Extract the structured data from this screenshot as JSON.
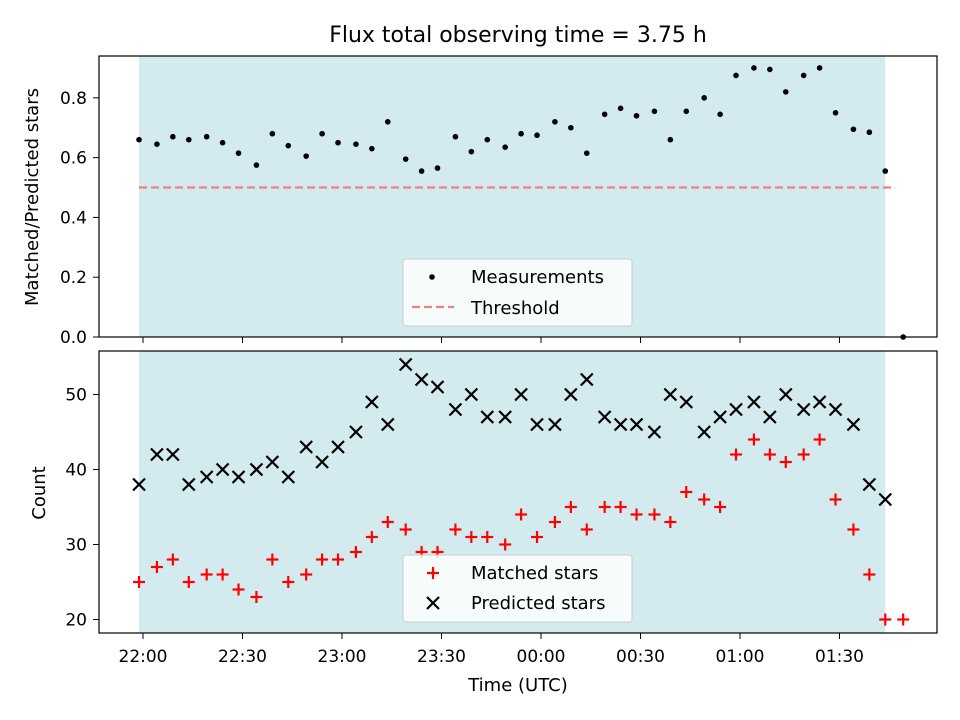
{
  "chart_data": [
    {
      "type": "scatter",
      "title": "Flux total observing time = 3.75 h",
      "ylabel": "Matched/Predicted stars",
      "xlabel": "",
      "ylim": [
        0,
        0.94
      ],
      "yticks": [
        0.0,
        0.2,
        0.4,
        0.6,
        0.8
      ],
      "ytick_labels": [
        "0.0",
        "0.2",
        "0.4",
        "0.6",
        "0.8"
      ],
      "grid": false,
      "legend_position": "bottom-center",
      "shaded_span_color": "#d3eaee",
      "shaded_span_hours": [
        -0.02,
        3.73
      ],
      "series": [
        {
          "name": "Measurements",
          "marker": "dot",
          "color": "#000000",
          "x_hours": [
            -0.02,
            0.07,
            0.15,
            0.23,
            0.32,
            0.4,
            0.48,
            0.57,
            0.65,
            0.73,
            0.82,
            0.9,
            0.98,
            1.07,
            1.15,
            1.23,
            1.32,
            1.4,
            1.48,
            1.57,
            1.65,
            1.73,
            1.82,
            1.9,
            1.98,
            2.07,
            2.15,
            2.23,
            2.32,
            2.4,
            2.48,
            2.57,
            2.65,
            2.73,
            2.82,
            2.9,
            2.98,
            3.07,
            3.15,
            3.23,
            3.32,
            3.4,
            3.48,
            3.57,
            3.65,
            3.73,
            3.82
          ],
          "values": [
            0.66,
            0.645,
            0.67,
            0.66,
            0.67,
            0.65,
            0.615,
            0.575,
            0.68,
            0.64,
            0.605,
            0.68,
            0.65,
            0.645,
            0.63,
            0.72,
            0.595,
            0.555,
            0.565,
            0.67,
            0.62,
            0.66,
            0.635,
            0.68,
            0.675,
            0.72,
            0.7,
            0.615,
            0.745,
            0.765,
            0.74,
            0.755,
            0.66,
            0.755,
            0.8,
            0.745,
            0.875,
            0.9,
            0.895,
            0.82,
            0.875,
            0.9,
            0.75,
            0.695,
            0.685,
            0.555,
            0.0
          ]
        },
        {
          "name": "Threshold",
          "marker": "dashed-line",
          "color": "#f08080",
          "x_hours": [
            -0.02,
            3.78
          ],
          "values": [
            0.5,
            0.5
          ]
        }
      ]
    },
    {
      "type": "scatter",
      "xlabel": "Time (UTC)",
      "ylabel": "Count",
      "ylim": [
        18.2,
        55.8
      ],
      "yticks": [
        20,
        30,
        40,
        50
      ],
      "ytick_labels": [
        "20",
        "30",
        "40",
        "50"
      ],
      "xticks_hours": [
        0,
        0.5,
        1,
        1.5,
        2,
        2.5,
        3,
        3.5
      ],
      "xtick_labels": [
        "22:00",
        "22:30",
        "23:00",
        "23:30",
        "00:00",
        "00:30",
        "01:00",
        "01:30"
      ],
      "grid": false,
      "legend_position": "bottom-center",
      "series": [
        {
          "name": "Matched stars",
          "marker": "plus",
          "color": "#ff0000",
          "x_hours": [
            -0.02,
            0.07,
            0.15,
            0.23,
            0.32,
            0.4,
            0.48,
            0.57,
            0.65,
            0.73,
            0.82,
            0.9,
            0.98,
            1.07,
            1.15,
            1.23,
            1.32,
            1.4,
            1.48,
            1.57,
            1.65,
            1.73,
            1.82,
            1.9,
            1.98,
            2.07,
            2.15,
            2.23,
            2.32,
            2.4,
            2.48,
            2.57,
            2.65,
            2.73,
            2.82,
            2.9,
            2.98,
            3.07,
            3.15,
            3.23,
            3.32,
            3.4,
            3.48,
            3.57,
            3.65,
            3.73,
            3.82
          ],
          "values": [
            25,
            27,
            28,
            25,
            26,
            26,
            24,
            23,
            28,
            25,
            26,
            28,
            28,
            29,
            31,
            33,
            32,
            29,
            29,
            32,
            31,
            31,
            30,
            34,
            31,
            33,
            35,
            32,
            35,
            35,
            34,
            34,
            33,
            37,
            36,
            35,
            42,
            44,
            42,
            41,
            42,
            44,
            36,
            32,
            26,
            20,
            20
          ]
        },
        {
          "name": "Predicted stars",
          "marker": "x",
          "color": "#000000",
          "x_hours": [
            -0.02,
            0.07,
            0.15,
            0.23,
            0.32,
            0.4,
            0.48,
            0.57,
            0.65,
            0.73,
            0.82,
            0.9,
            0.98,
            1.07,
            1.15,
            1.23,
            1.32,
            1.4,
            1.48,
            1.57,
            1.65,
            1.73,
            1.82,
            1.9,
            1.98,
            2.07,
            2.15,
            2.23,
            2.32,
            2.4,
            2.48,
            2.57,
            2.65,
            2.73,
            2.82,
            2.9,
            2.98,
            3.07,
            3.15,
            3.23,
            3.32,
            3.4,
            3.48,
            3.57,
            3.65,
            3.73
          ],
          "values": [
            38,
            42,
            42,
            38,
            39,
            40,
            39,
            40,
            41,
            39,
            43,
            41,
            43,
            45,
            49,
            46,
            54,
            52,
            51,
            48,
            50,
            47,
            47,
            50,
            46,
            46,
            50,
            52,
            47,
            46,
            46,
            45,
            50,
            49,
            45,
            47,
            48,
            49,
            47,
            50,
            48,
            49,
            48,
            46,
            38,
            36
          ]
        }
      ]
    }
  ]
}
